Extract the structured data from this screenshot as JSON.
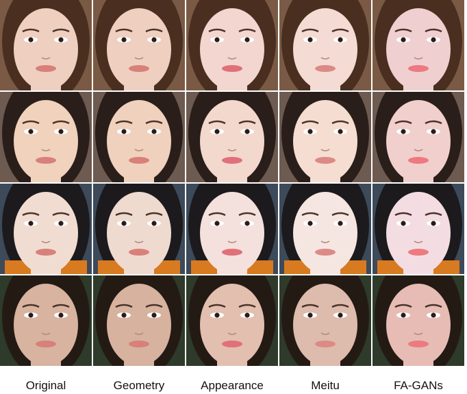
{
  "columns": [
    "Original",
    "Geometry",
    "Appearance",
    "Meitu",
    "FA-GANs"
  ]
}
